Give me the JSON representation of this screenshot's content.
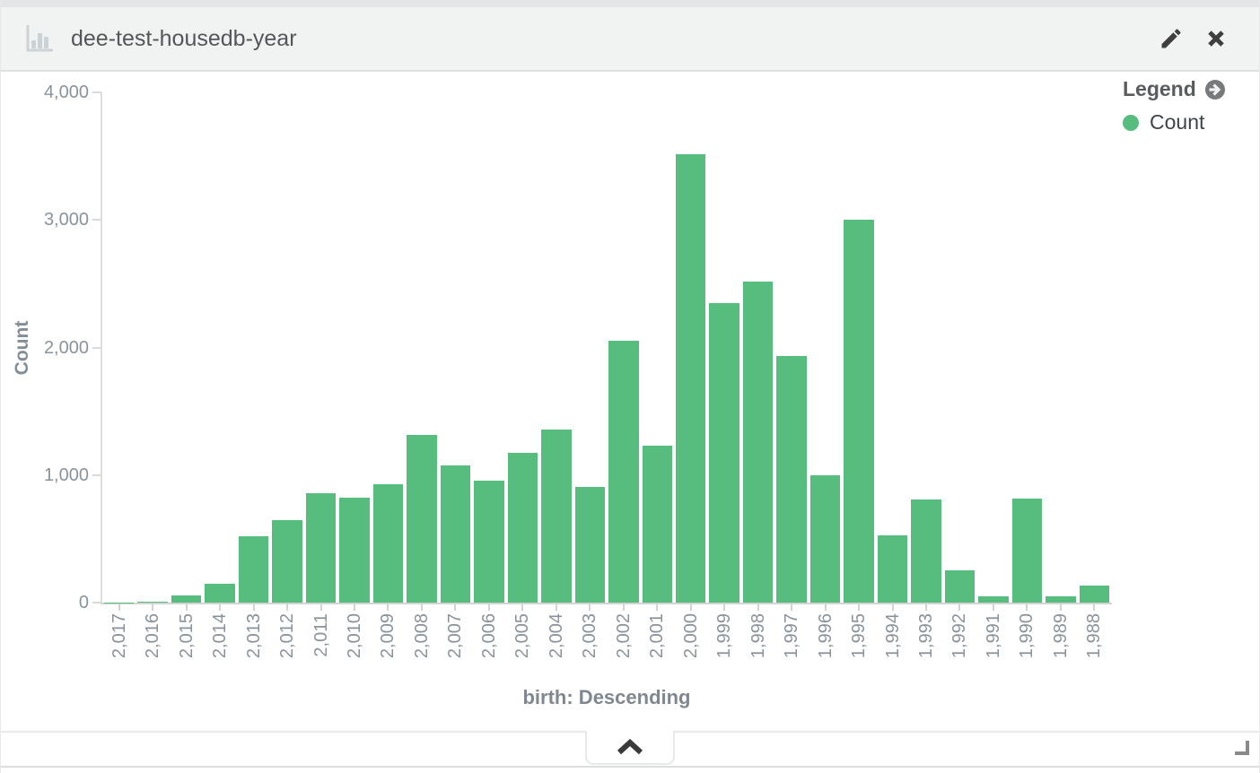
{
  "header": {
    "title": "dee-test-housedb-year"
  },
  "legend": {
    "title": "Legend",
    "items": [
      {
        "label": "Count",
        "color": "#57bd7f"
      }
    ]
  },
  "chart_data": {
    "type": "bar",
    "title": "dee-test-housedb-year",
    "xlabel": "birth: Descending",
    "ylabel": "Count",
    "categories": [
      "2,017",
      "2,016",
      "2,015",
      "2,014",
      "2,013",
      "2,012",
      "2,011",
      "2,010",
      "2,009",
      "2,008",
      "2,007",
      "2,006",
      "2,005",
      "2,004",
      "2,003",
      "2,002",
      "2,001",
      "2,000",
      "1,999",
      "1,998",
      "1,997",
      "1,996",
      "1,995",
      "1,994",
      "1,993",
      "1,992",
      "1,991",
      "1,990",
      "1,989",
      "1,988"
    ],
    "values": [
      2,
      10,
      55,
      145,
      520,
      650,
      860,
      825,
      930,
      1315,
      1075,
      955,
      1175,
      1355,
      910,
      2050,
      1230,
      3515,
      2350,
      2515,
      1935,
      1000,
      3000,
      530,
      810,
      255,
      50,
      815,
      50,
      135
    ],
    "series_name": "Count",
    "ylim": [
      0,
      4000
    ],
    "yticks": [
      0,
      1000,
      2000,
      3000,
      4000
    ],
    "ytick_labels": [
      "0",
      "1,000",
      "2,000",
      "3,000",
      "4,000"
    ],
    "bar_color": "#57bd7f",
    "grid": false,
    "legend_position": "top-right"
  }
}
